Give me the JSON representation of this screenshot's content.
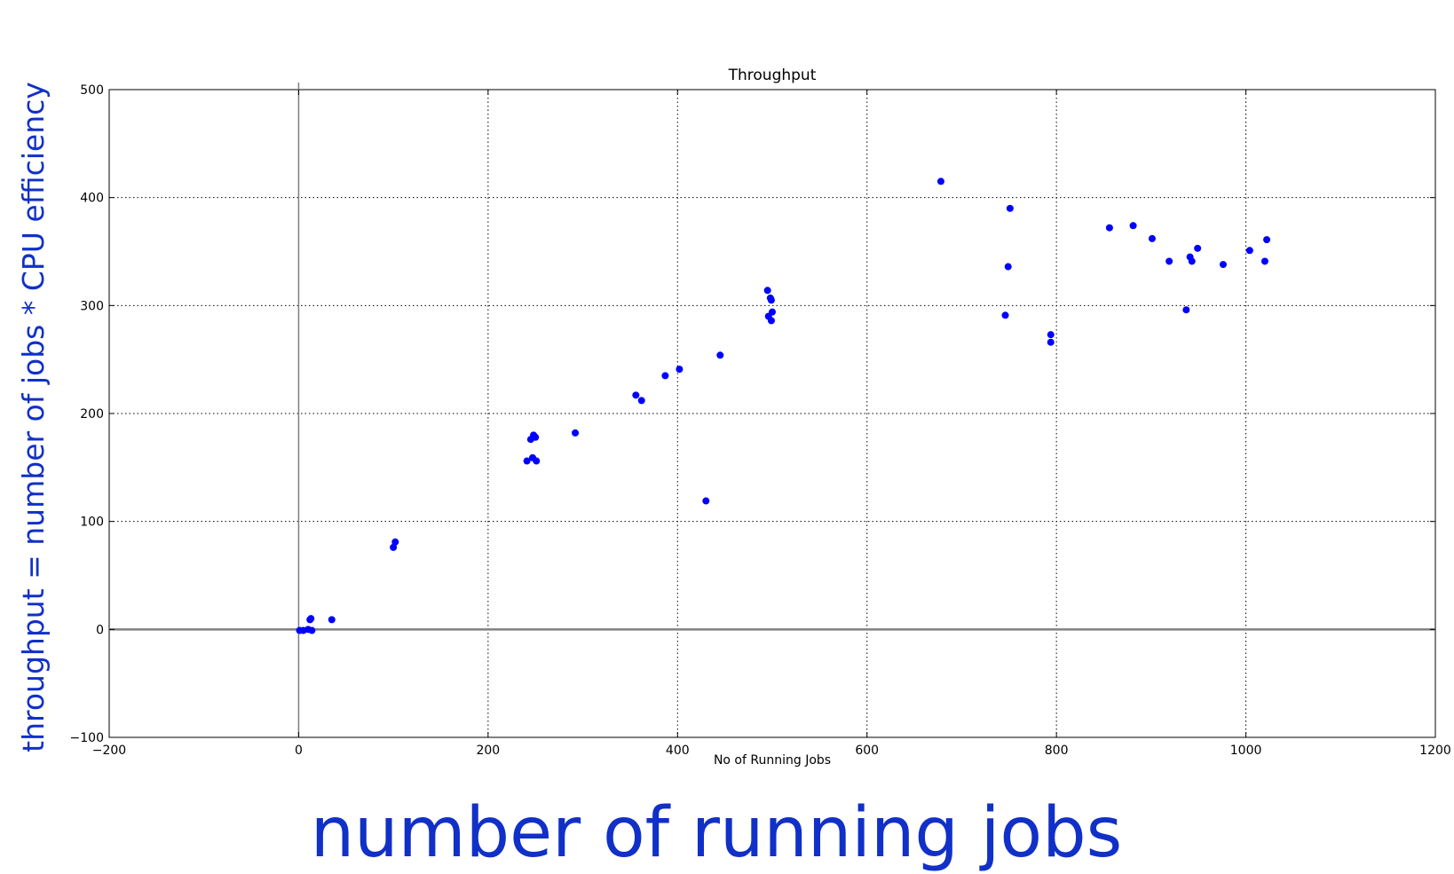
{
  "overlay": {
    "x_label": "number of running jobs",
    "y_label": "throughput = number of jobs * CPU efficiency",
    "color": "#1030c8"
  },
  "chart_data": {
    "type": "scatter",
    "title": "Throughput",
    "xlabel": "No of Running Jobs",
    "ylabel": "",
    "xlim": [
      -200,
      1200
    ],
    "ylim": [
      -100,
      500
    ],
    "x_ticks": [
      -200,
      0,
      200,
      400,
      600,
      800,
      1000,
      1200
    ],
    "y_ticks": [
      -100,
      0,
      100,
      200,
      300,
      400,
      500
    ],
    "x_tick_labels": [
      "−200",
      "0",
      "200",
      "400",
      "600",
      "800",
      "1000",
      "1200"
    ],
    "y_tick_labels": [
      "−100",
      "0",
      "100",
      "200",
      "300",
      "400",
      "500"
    ],
    "grid": true,
    "point_color": "#0000ff",
    "axis_line_color": "#808080",
    "points": [
      {
        "x": 1,
        "y": -1
      },
      {
        "x": 5,
        "y": -1
      },
      {
        "x": 10,
        "y": 0
      },
      {
        "x": 12,
        "y": 9
      },
      {
        "x": 13,
        "y": 10
      },
      {
        "x": 14,
        "y": -1
      },
      {
        "x": 35,
        "y": 9
      },
      {
        "x": 100,
        "y": 76
      },
      {
        "x": 102,
        "y": 81
      },
      {
        "x": 241,
        "y": 156
      },
      {
        "x": 245,
        "y": 176
      },
      {
        "x": 247,
        "y": 159
      },
      {
        "x": 248,
        "y": 180
      },
      {
        "x": 250,
        "y": 178
      },
      {
        "x": 251,
        "y": 156
      },
      {
        "x": 292,
        "y": 182
      },
      {
        "x": 356,
        "y": 217
      },
      {
        "x": 362,
        "y": 212
      },
      {
        "x": 387,
        "y": 235
      },
      {
        "x": 402,
        "y": 241
      },
      {
        "x": 430,
        "y": 119
      },
      {
        "x": 445,
        "y": 254
      },
      {
        "x": 495,
        "y": 314
      },
      {
        "x": 496,
        "y": 290
      },
      {
        "x": 498,
        "y": 307
      },
      {
        "x": 499,
        "y": 305
      },
      {
        "x": 499,
        "y": 286
      },
      {
        "x": 500,
        "y": 294
      },
      {
        "x": 678,
        "y": 415
      },
      {
        "x": 746,
        "y": 291
      },
      {
        "x": 749,
        "y": 336
      },
      {
        "x": 751,
        "y": 390
      },
      {
        "x": 794,
        "y": 273
      },
      {
        "x": 794,
        "y": 266
      },
      {
        "x": 856,
        "y": 372
      },
      {
        "x": 881,
        "y": 374
      },
      {
        "x": 901,
        "y": 362
      },
      {
        "x": 919,
        "y": 341
      },
      {
        "x": 937,
        "y": 296
      },
      {
        "x": 941,
        "y": 345
      },
      {
        "x": 943,
        "y": 341
      },
      {
        "x": 949,
        "y": 353
      },
      {
        "x": 976,
        "y": 338
      },
      {
        "x": 1004,
        "y": 351
      },
      {
        "x": 1020,
        "y": 341
      },
      {
        "x": 1022,
        "y": 361
      }
    ]
  }
}
